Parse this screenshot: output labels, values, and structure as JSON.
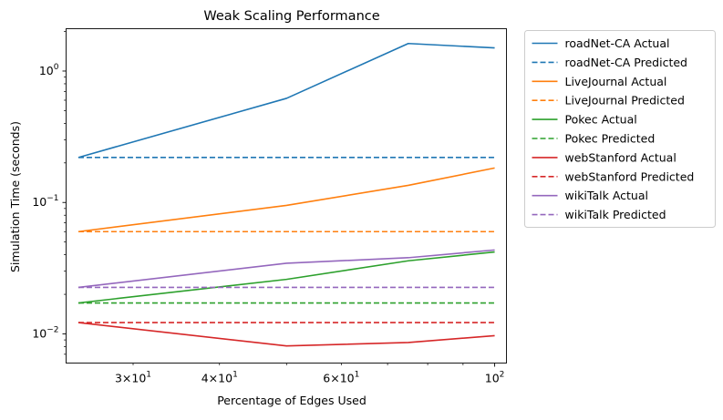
{
  "chart_data": {
    "type": "line",
    "title": "Weak Scaling Performance",
    "xlabel": "Percentage of Edges Used",
    "ylabel": "Simulation Time (seconds)",
    "xscale": "log",
    "yscale": "log",
    "xlim": [
      24,
      104
    ],
    "ylim": [
      0.006,
      2.1
    ],
    "x_major_ticks": [
      {
        "value": 100,
        "base": "10",
        "exp": "2"
      }
    ],
    "x_minor_ticks": [
      {
        "value": 30,
        "mant": "3",
        "base": "10",
        "exp": "1"
      },
      {
        "value": 40,
        "mant": "4",
        "base": "10",
        "exp": "1"
      },
      {
        "value": 60,
        "mant": "6",
        "base": "10",
        "exp": "1"
      }
    ],
    "x_unlabeled_minor": [
      50,
      70,
      80,
      90
    ],
    "y_major_ticks": [
      {
        "value": 0.01,
        "base": "10",
        "exp": "−2"
      },
      {
        "value": 0.1,
        "base": "10",
        "exp": "−1"
      },
      {
        "value": 1,
        "base": "10",
        "exp": "0"
      }
    ],
    "y_minor_ticks": [
      0.007,
      0.008,
      0.009,
      0.02,
      0.03,
      0.04,
      0.05,
      0.06,
      0.07,
      0.08,
      0.09,
      0.2,
      0.3,
      0.4,
      0.5,
      0.6,
      0.7,
      0.8,
      0.9,
      2
    ],
    "legend_position": "outside-right",
    "x": [
      25,
      50,
      75,
      100
    ],
    "series": [
      {
        "name": "roadNet-CA Actual",
        "color": "#1f77b4",
        "style": "solid",
        "values": [
          0.22,
          0.62,
          1.62,
          1.5
        ]
      },
      {
        "name": "roadNet-CA Predicted",
        "color": "#1f77b4",
        "style": "dashed",
        "values": [
          0.22,
          0.22,
          0.22,
          0.22
        ]
      },
      {
        "name": "LiveJournal Actual",
        "color": "#ff7f0e",
        "style": "solid",
        "values": [
          0.06,
          0.095,
          0.135,
          0.183
        ]
      },
      {
        "name": "LiveJournal Predicted",
        "color": "#ff7f0e",
        "style": "dashed",
        "values": [
          0.06,
          0.06,
          0.06,
          0.06
        ]
      },
      {
        "name": "Pokec Actual",
        "color": "#2ca02c",
        "style": "solid",
        "values": [
          0.0172,
          0.026,
          0.036,
          0.042
        ]
      },
      {
        "name": "Pokec Predicted",
        "color": "#2ca02c",
        "style": "dashed",
        "values": [
          0.0172,
          0.0172,
          0.0172,
          0.0172
        ]
      },
      {
        "name": "webStanford Actual",
        "color": "#d62728",
        "style": "solid",
        "values": [
          0.0122,
          0.0081,
          0.0086,
          0.0097
        ]
      },
      {
        "name": "webStanford Predicted",
        "color": "#d62728",
        "style": "dashed",
        "values": [
          0.0122,
          0.0122,
          0.0122,
          0.0122
        ]
      },
      {
        "name": "wikiTalk Actual",
        "color": "#9467bd",
        "style": "solid",
        "values": [
          0.0226,
          0.0345,
          0.038,
          0.0435
        ]
      },
      {
        "name": "wikiTalk Predicted",
        "color": "#9467bd",
        "style": "dashed",
        "values": [
          0.0226,
          0.0226,
          0.0226,
          0.0226
        ]
      }
    ]
  }
}
